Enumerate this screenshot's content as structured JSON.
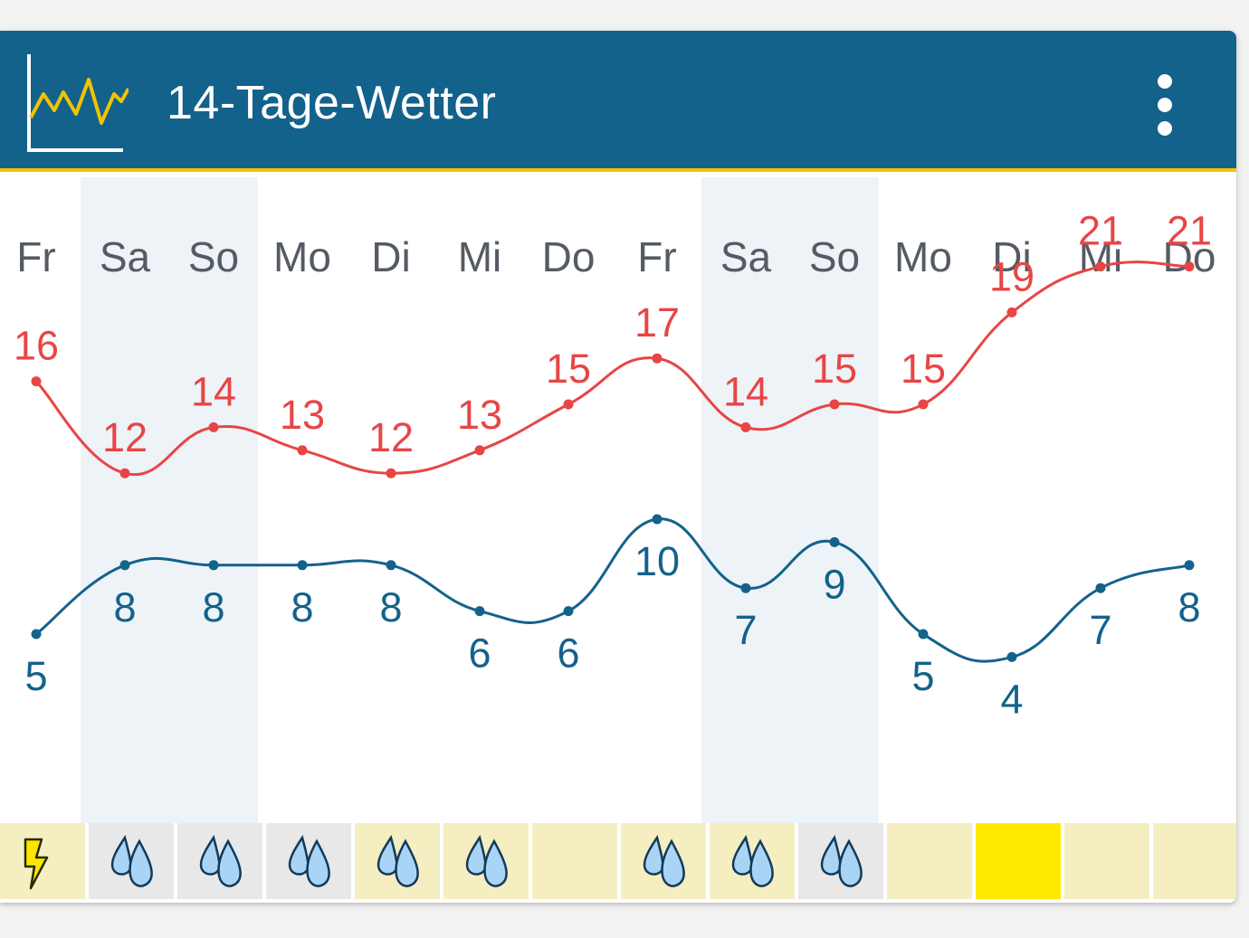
{
  "header": {
    "title": "14-Tage-Wetter",
    "logo_icon": "chart-line-icon",
    "menu_icon": "more-vertical-icon"
  },
  "colors": {
    "header_bg": "#13628c",
    "accent_line": "#f1c300",
    "max_line": "#e84545",
    "min_line": "#13628c",
    "weekend_bg": "#eef3f7",
    "rain_cell_bg": "#e8e8e8",
    "dry_cell_bg": "#f5eec0",
    "sun_cell_bg": "#ffea00"
  },
  "chart_data": {
    "type": "line",
    "categories": [
      "Fr",
      "Sa",
      "So",
      "Mo",
      "Di",
      "Mi",
      "Do",
      "Fr",
      "Sa",
      "So",
      "Mo",
      "Di",
      "Mi",
      "Do"
    ],
    "weekend_indices": [
      1,
      2,
      8,
      9
    ],
    "series": [
      {
        "key": "max",
        "values": [
          16,
          12,
          14,
          13,
          12,
          13,
          15,
          17,
          14,
          15,
          15,
          19,
          21,
          21
        ]
      },
      {
        "key": "min",
        "values": [
          5,
          8,
          8,
          8,
          8,
          6,
          6,
          10,
          7,
          9,
          5,
          4,
          7,
          8
        ]
      }
    ],
    "title": "",
    "xlabel": "",
    "ylabel": "",
    "grid": false,
    "legend": "none"
  },
  "weather_icons": [
    "thunderstorm-icon",
    "rain-icon",
    "rain-icon",
    "rain-icon",
    "rain-icon",
    "rain-icon",
    "none",
    "rain-icon",
    "rain-icon",
    "rain-icon",
    "none",
    "sunny",
    "none",
    "none"
  ]
}
